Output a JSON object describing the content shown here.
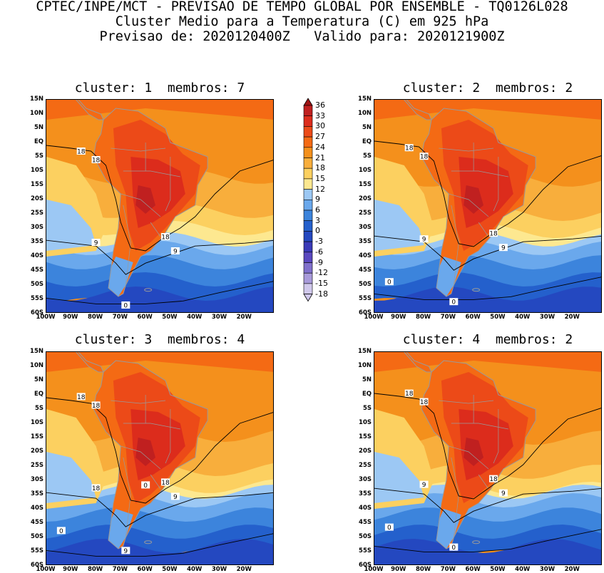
{
  "header": {
    "line1": "CPTEC/INPE/MCT - PREVISAO DE TEMPO GLOBAL POR ENSEMBLE - TQ0126L028",
    "line2": "Cluster Medio para a Temperatura (C) em 925 hPa",
    "line3": "Previsao de: 2020120400Z   Valido para: 2020121900Z"
  },
  "panels": [
    {
      "title": "cluster: 1  membros: 7",
      "contour_labels": [
        "18",
        "18",
        "18",
        "9",
        "9",
        "0"
      ]
    },
    {
      "title": "cluster: 2  membros: 2",
      "contour_labels": [
        "18",
        "18",
        "18",
        "9",
        "9",
        "0",
        "0"
      ]
    },
    {
      "title": "cluster: 3  membros: 4",
      "contour_labels": [
        "18",
        "18",
        "18",
        "18",
        "9",
        "9",
        "0",
        "0"
      ]
    },
    {
      "title": "cluster: 4  membros: 2",
      "contour_labels": [
        "18",
        "18",
        "18",
        "9",
        "9",
        "0",
        "0"
      ]
    }
  ],
  "lat_ticks": [
    "15N",
    "10N",
    "5N",
    "EQ",
    "5S",
    "10S",
    "15S",
    "20S",
    "25S",
    "30S",
    "35S",
    "40S",
    "45S",
    "50S",
    "55S",
    "60S"
  ],
  "lon_ticks": [
    "100W",
    "90W",
    "80W",
    "70W",
    "60W",
    "50W",
    "40W",
    "30W",
    "20W"
  ],
  "colorbar": {
    "levels": [
      "36",
      "33",
      "30",
      "27",
      "24",
      "21",
      "18",
      "15",
      "12",
      "9",
      "6",
      "3",
      "0",
      "-3",
      "-6",
      "-9",
      "-12",
      "-15",
      "-18"
    ],
    "colors": [
      "#a01414",
      "#c02020",
      "#dc2c1c",
      "#ec4a18",
      "#f46a14",
      "#f4901c",
      "#f8ae3c",
      "#fcd060",
      "#fde890",
      "#9cc8f4",
      "#6aa8ec",
      "#3c84dc",
      "#2460cc",
      "#2448c0",
      "#3a3ab8",
      "#5a48c0",
      "#8070cc",
      "#a89ada",
      "#d0c8ec"
    ]
  },
  "colors": {
    "land_border": "#9a9a9a",
    "contour": "#000000",
    "map_bg": "#f4901c"
  }
}
